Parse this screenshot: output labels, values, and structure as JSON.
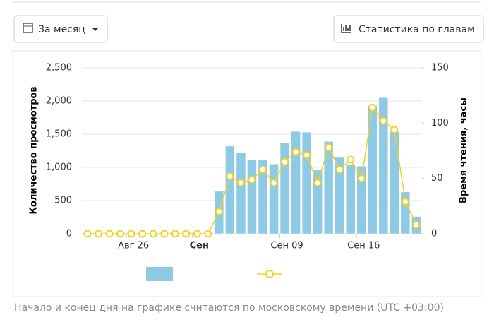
{
  "toolbar": {
    "period": "За месяц",
    "chapters": "Статистика по главам"
  },
  "note": "Начало и конец дня на графике считаются по московскому времени (UTC +03:00)",
  "chart_data": {
    "type": "bar-line",
    "y_label": "Количество просмотров",
    "y2_label": "Время чтения, часы",
    "categories": [
      null,
      null,
      null,
      null,
      "Авг 26",
      null,
      null,
      null,
      null,
      null,
      "Сен",
      null,
      null,
      null,
      null,
      null,
      null,
      null,
      "Сен 09",
      null,
      null,
      null,
      null,
      null,
      null,
      "Сен 16",
      null,
      null,
      null,
      null,
      null
    ],
    "series": [
      {
        "color": "#8ecae6",
        "values": [
          0,
          0,
          0,
          0,
          0,
          0,
          0,
          0,
          0,
          0,
          0,
          0,
          640,
          1320,
          1220,
          1110,
          1110,
          1050,
          1370,
          1540,
          1530,
          970,
          1390,
          1150,
          1040,
          1020,
          1930,
          2050,
          1540,
          630,
          260
        ]
      },
      {
        "color": "#f2d21c",
        "axis": "y2",
        "values": [
          0,
          0,
          0,
          0,
          0,
          0,
          0,
          0,
          0,
          0,
          0,
          0,
          20,
          52,
          46,
          49,
          58,
          46,
          65,
          74,
          71,
          46,
          78,
          58,
          67,
          50,
          114,
          102,
          94,
          29,
          8
        ]
      }
    ],
    "ylim": [
      0,
      2500
    ],
    "yticks": [
      0,
      500,
      {
        "value": 1000,
        "label": "1,000"
      },
      {
        "value": 1500,
        "label": "1,500"
      },
      {
        "value": 2000,
        "label": "2,000"
      },
      {
        "value": 2500,
        "label": "2,500"
      }
    ],
    "y2lim": [
      0,
      150
    ],
    "y2ticks": [
      0,
      50,
      100,
      150
    ],
    "grid": true
  }
}
